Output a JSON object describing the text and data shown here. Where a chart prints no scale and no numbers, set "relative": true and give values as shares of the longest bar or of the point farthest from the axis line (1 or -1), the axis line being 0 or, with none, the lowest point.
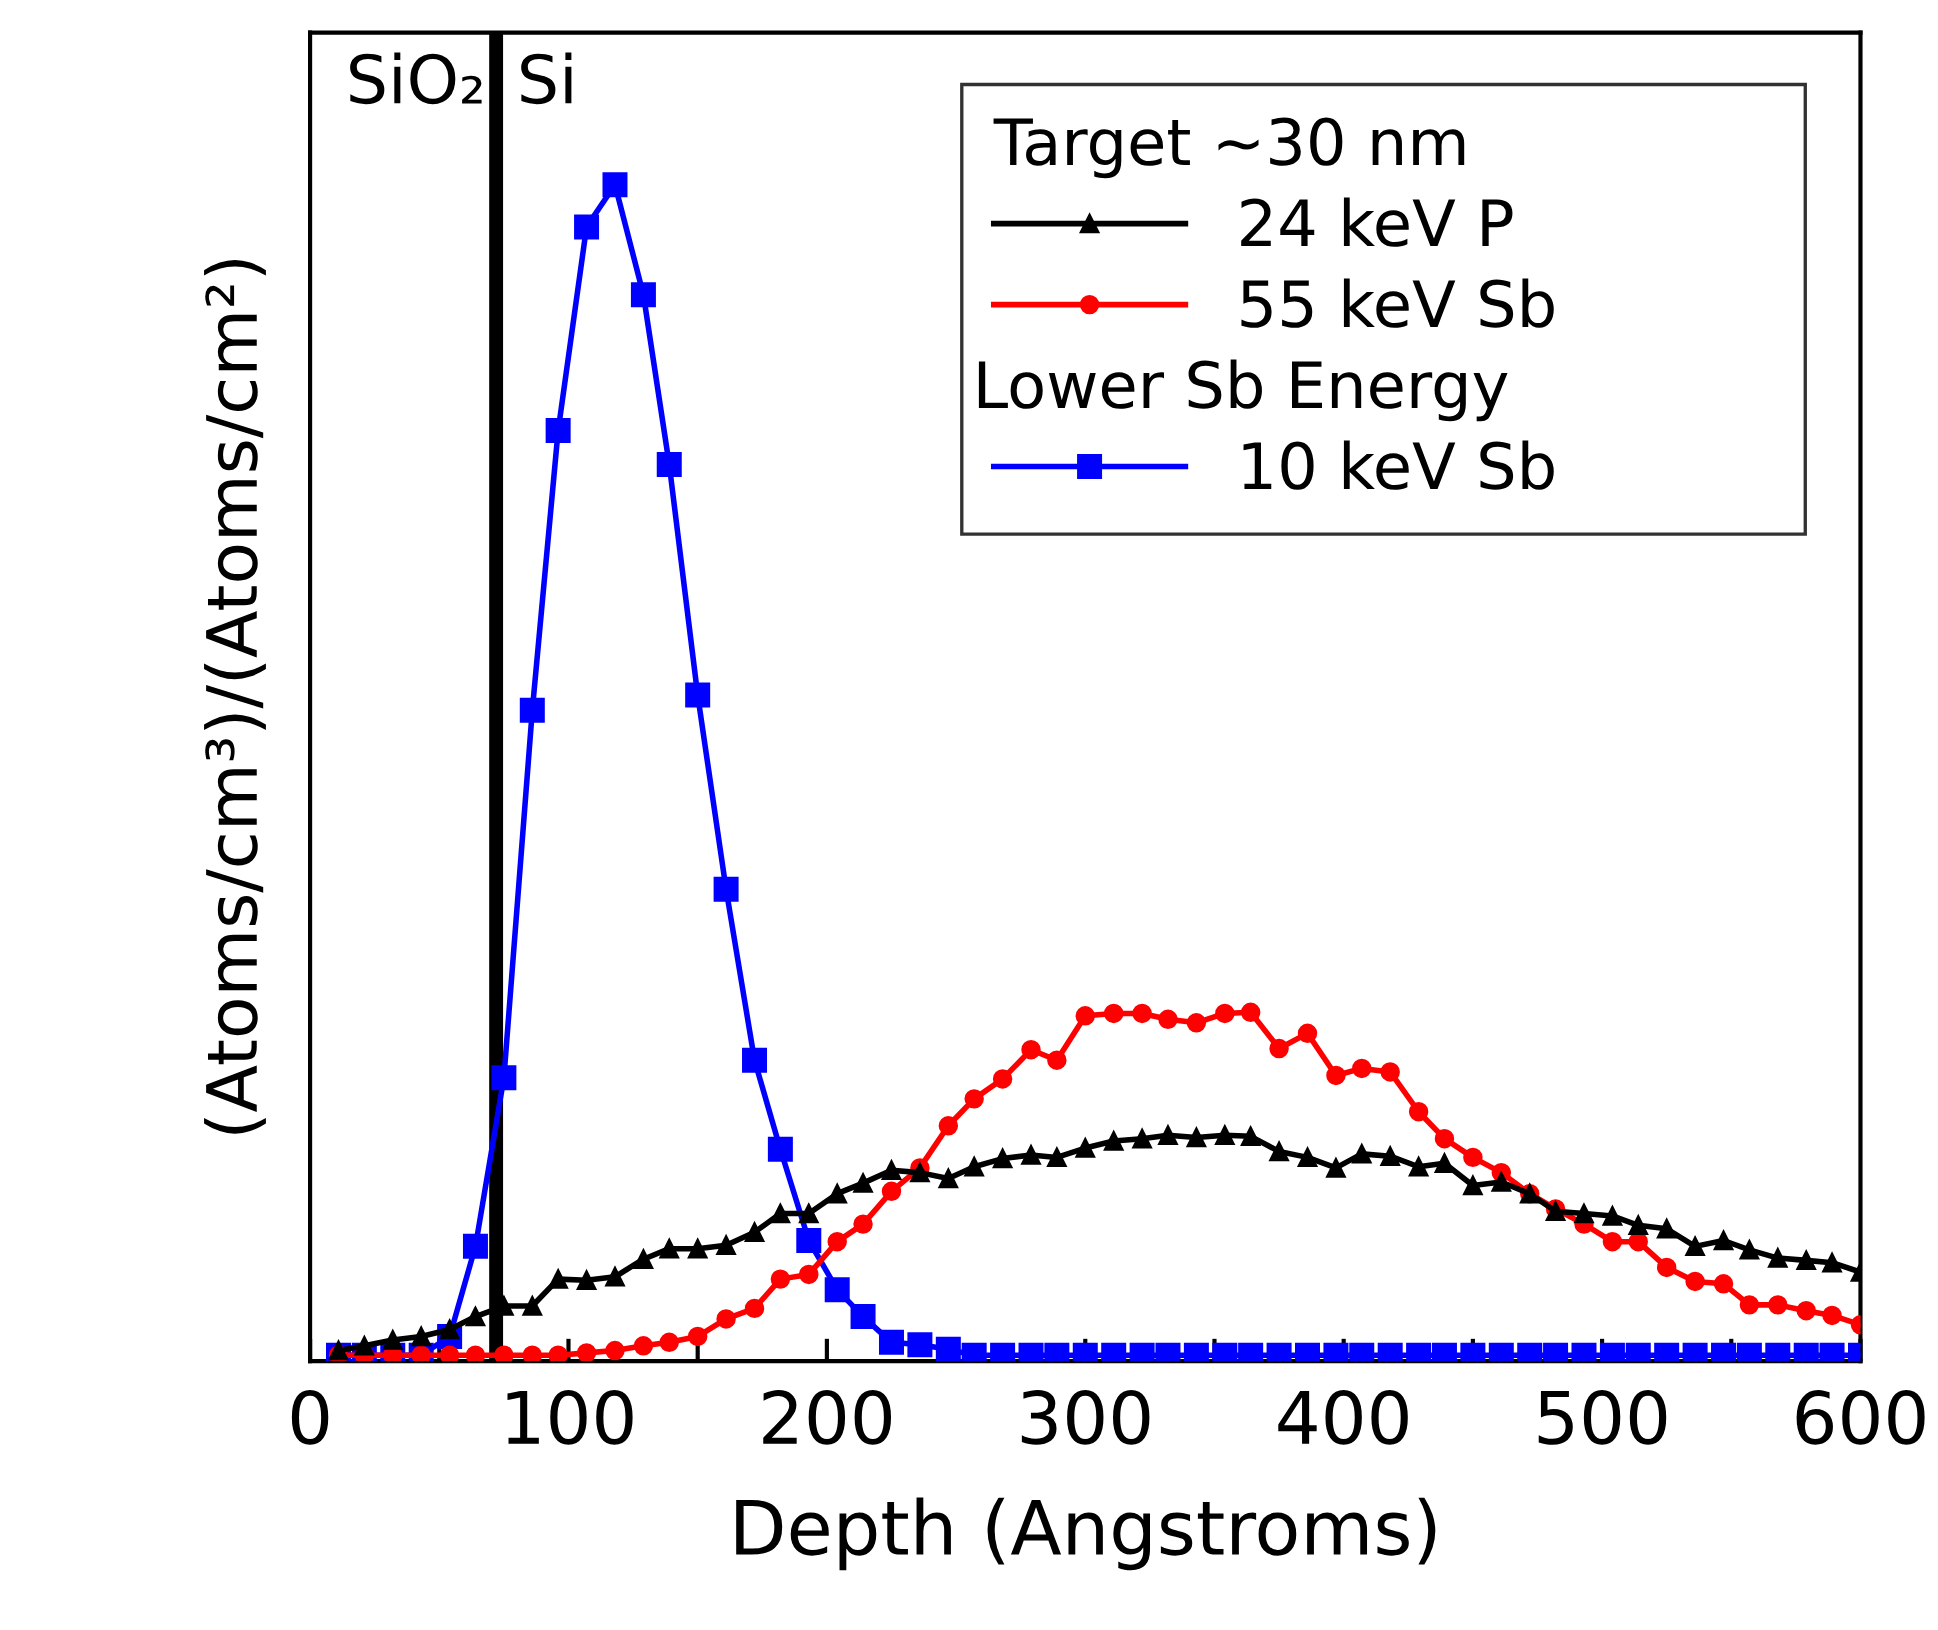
{
  "chart_data": {
    "type": "line",
    "relative": true,
    "xlabel": "Depth (Angstroms)",
    "ylabel": "(Atoms/cm³)/(Atoms/cm²)",
    "legend_title": "Target ~30 nm",
    "legend": "top right",
    "grid": false,
    "line_style": "solid",
    "x": [
      11,
      21,
      32,
      43,
      54,
      64,
      75,
      86,
      96,
      107,
      118,
      129,
      139,
      150,
      161,
      172,
      182,
      193,
      204,
      214,
      225,
      236,
      247,
      257,
      268,
      279,
      289,
      300,
      311,
      322,
      332,
      343,
      354,
      364,
      375,
      386,
      397,
      407,
      418,
      429,
      439,
      450,
      461,
      472,
      482,
      493,
      504,
      514,
      525,
      536,
      547,
      557,
      568,
      579,
      589,
      600
    ],
    "xlim": [
      0,
      600
    ],
    "xticks": [
      0,
      {
        "value": 50,
        "label": null
      },
      100,
      {
        "value": 150,
        "label": null
      },
      200,
      {
        "value": 250,
        "label": null
      },
      300,
      {
        "value": 350,
        "label": null
      },
      400,
      {
        "value": 450,
        "label": null
      },
      500,
      {
        "value": 550,
        "label": null
      },
      600
    ],
    "ref_lines": [
      {
        "axis": "x",
        "value": 72,
        "color": "#000000"
      }
    ],
    "annotations": [
      "SiO₂",
      "Si",
      "Lower Sb Energy"
    ],
    "series": [
      {
        "name": "24 keV P",
        "color": "#000000",
        "marker": "triangle",
        "values": [
          0.004,
          0.008,
          0.013,
          0.016,
          0.022,
          0.033,
          0.042,
          0.042,
          0.065,
          0.064,
          0.067,
          0.082,
          0.091,
          0.091,
          0.094,
          0.105,
          0.121,
          0.121,
          0.138,
          0.147,
          0.158,
          0.156,
          0.151,
          0.161,
          0.168,
          0.171,
          0.169,
          0.177,
          0.183,
          0.185,
          0.188,
          0.186,
          0.188,
          0.187,
          0.174,
          0.169,
          0.16,
          0.172,
          0.17,
          0.161,
          0.164,
          0.145,
          0.148,
          0.138,
          0.123,
          0.121,
          0.119,
          0.111,
          0.108,
          0.093,
          0.098,
          0.09,
          0.083,
          0.081,
          0.079,
          0.071
        ]
      },
      {
        "name": "55 keV Sb",
        "color": "#ff0000",
        "marker": "circle",
        "values": [
          0,
          0,
          0,
          0,
          0,
          0,
          0,
          0,
          0,
          0.002,
          0.004,
          0.008,
          0.011,
          0.016,
          0.031,
          0.04,
          0.065,
          0.069,
          0.097,
          0.112,
          0.14,
          0.16,
          0.196,
          0.219,
          0.236,
          0.261,
          0.252,
          0.29,
          0.292,
          0.292,
          0.287,
          0.284,
          0.292,
          0.293,
          0.262,
          0.275,
          0.239,
          0.245,
          0.242,
          0.208,
          0.185,
          0.169,
          0.156,
          0.138,
          0.125,
          0.112,
          0.097,
          0.097,
          0.075,
          0.063,
          0.061,
          0.043,
          0.043,
          0.038,
          0.034,
          0.026
        ]
      },
      {
        "name": "10 keV Sb",
        "color": "#0000ff",
        "marker": "square",
        "values": [
          0,
          0,
          0,
          0,
          0.016,
          0.093,
          0.237,
          0.551,
          0.79,
          0.964,
          1.0,
          0.906,
          0.761,
          0.564,
          0.398,
          0.252,
          0.176,
          0.098,
          0.056,
          0.033,
          0.011,
          0.009,
          0.005,
          0,
          0,
          0,
          0,
          0,
          0,
          0,
          0,
          0,
          0,
          0,
          0,
          0,
          0,
          0,
          0,
          0,
          0,
          0,
          0,
          0,
          0,
          0,
          0,
          0,
          0,
          0,
          0,
          0,
          0,
          0,
          0,
          0
        ]
      }
    ]
  }
}
